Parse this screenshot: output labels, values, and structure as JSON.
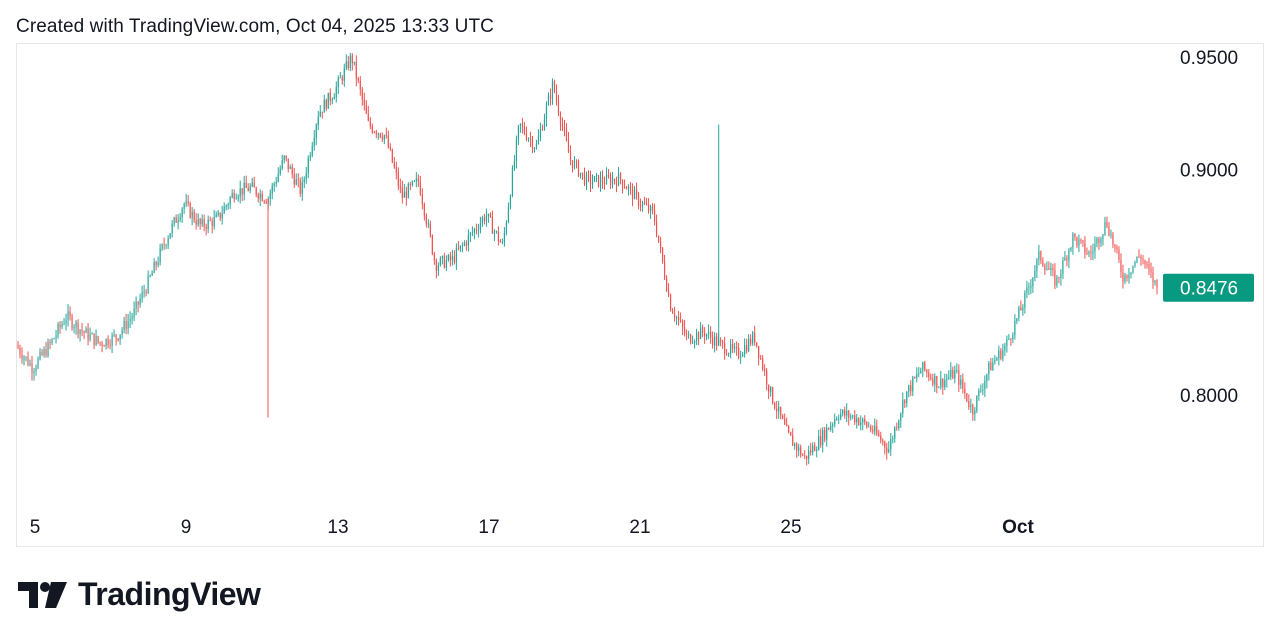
{
  "header": {
    "caption": "Created with TradingView.com, Oct 04, 2025 13:33 UTC"
  },
  "brand": {
    "name": "TradingView"
  },
  "colors": {
    "up": "#26a69a",
    "down": "#ef5350",
    "badge": "#089981",
    "text": "#131722",
    "border": "#e6e7ea"
  },
  "chart_data": {
    "type": "candlestick",
    "x_ticks": [
      "5",
      "9",
      "13",
      "17",
      "21",
      "25",
      "Oct"
    ],
    "y_ticks": [
      "0.9500",
      "0.9000",
      "0.8000"
    ],
    "ylim": [
      0.758,
      0.956
    ],
    "last_price_label": "0.8476",
    "last_price": 0.8476,
    "grid": false,
    "price_path": [
      [
        0,
        0.822
      ],
      [
        1,
        0.812
      ],
      [
        2,
        0.822
      ],
      [
        3,
        0.835
      ],
      [
        4,
        0.828
      ],
      [
        5,
        0.823
      ],
      [
        6,
        0.826
      ],
      [
        7,
        0.836
      ],
      [
        8,
        0.852
      ],
      [
        9,
        0.87
      ],
      [
        10,
        0.885
      ],
      [
        11,
        0.875
      ],
      [
        12,
        0.878
      ],
      [
        13,
        0.89
      ],
      [
        14,
        0.892
      ],
      [
        15,
        0.887
      ],
      [
        16,
        0.905
      ],
      [
        17,
        0.89
      ],
      [
        18,
        0.925
      ],
      [
        19,
        0.935
      ],
      [
        20,
        0.95
      ],
      [
        21,
        0.92
      ],
      [
        22,
        0.915
      ],
      [
        23,
        0.888
      ],
      [
        24,
        0.895
      ],
      [
        25,
        0.858
      ],
      [
        26,
        0.86
      ],
      [
        27,
        0.87
      ],
      [
        28,
        0.88
      ],
      [
        29,
        0.866
      ],
      [
        30,
        0.92
      ],
      [
        31,
        0.91
      ],
      [
        32,
        0.938
      ],
      [
        33,
        0.905
      ],
      [
        34,
        0.895
      ],
      [
        35,
        0.895
      ],
      [
        36,
        0.896
      ],
      [
        37,
        0.887
      ],
      [
        38,
        0.88
      ],
      [
        39,
        0.84
      ],
      [
        40,
        0.825
      ],
      [
        41,
        0.828
      ],
      [
        42,
        0.822
      ],
      [
        43,
        0.818
      ],
      [
        44,
        0.826
      ],
      [
        45,
        0.8
      ],
      [
        46,
        0.782
      ],
      [
        47,
        0.772
      ],
      [
        48,
        0.781
      ],
      [
        49,
        0.792
      ],
      [
        50,
        0.79
      ],
      [
        51,
        0.785
      ],
      [
        52,
        0.776
      ],
      [
        53,
        0.8
      ],
      [
        54,
        0.812
      ],
      [
        55,
        0.805
      ],
      [
        56,
        0.81
      ],
      [
        57,
        0.793
      ],
      [
        58,
        0.812
      ],
      [
        59,
        0.822
      ],
      [
        60,
        0.84
      ],
      [
        61,
        0.862
      ],
      [
        62,
        0.85
      ],
      [
        63,
        0.87
      ],
      [
        64,
        0.862
      ],
      [
        65,
        0.877
      ],
      [
        66,
        0.852
      ],
      [
        67,
        0.862
      ],
      [
        68,
        0.8476
      ]
    ]
  }
}
